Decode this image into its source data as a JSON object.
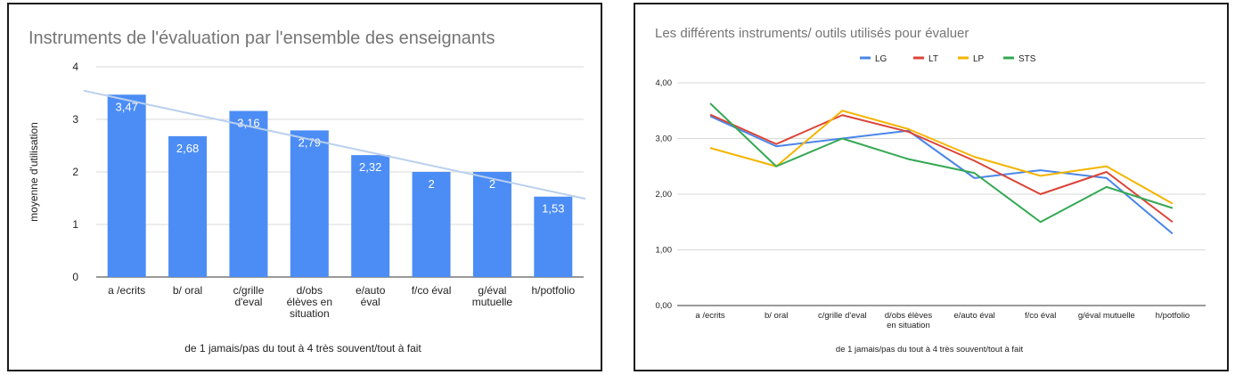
{
  "chart_data": [
    {
      "type": "bar",
      "title": "Instruments de l'évaluation par l'ensemble des enseignants",
      "xlabel": "de 1 jamais/pas du tout  à 4 très souvent/tout à fait",
      "ylabel": "moyenne d'utilisation",
      "ylim": [
        0,
        4
      ],
      "yticks": [
        "0",
        "1",
        "2",
        "3",
        "4"
      ],
      "categories": [
        [
          "a /ecrits"
        ],
        [
          "b/ oral"
        ],
        [
          "c/grille",
          "d'eval"
        ],
        [
          "d/obs",
          "élèves en",
          "situation"
        ],
        [
          "e/auto",
          "éval"
        ],
        [
          "f/co éval"
        ],
        [
          "g/éval",
          "mutuelle"
        ],
        [
          "h/potfolio"
        ]
      ],
      "values": [
        3.47,
        2.68,
        3.16,
        2.79,
        2.32,
        2,
        2,
        1.53
      ],
      "data_labels": [
        "3,47",
        "2,68",
        "3,16",
        "2,79",
        "2,32",
        "2",
        "2",
        "1,53"
      ],
      "trendline": true,
      "grid": true,
      "colors": {
        "bar": "#4c8df5",
        "trend": "#b9cfee",
        "grid": "#d9d9d9"
      }
    },
    {
      "type": "line",
      "title": "Les différents instruments/ outils utilisés pour évaluer",
      "xlabel": "de 1 jamais/pas du tout  à 4 très souvent/tout à fait",
      "ylabel": "",
      "ylim": [
        0,
        4
      ],
      "yticks": [
        "0,00",
        "1,00",
        "2,00",
        "3,00",
        "4,00"
      ],
      "categories": [
        [
          "a /ecrits"
        ],
        [
          "b/ oral"
        ],
        [
          "c/grille d'eval"
        ],
        [
          "d/obs élèves",
          "en situation"
        ],
        [
          "e/auto éval"
        ],
        [
          "f/co éval"
        ],
        [
          "g/éval mutuelle"
        ],
        [
          "h/potfolio"
        ]
      ],
      "series": [
        {
          "name": "LG",
          "color": "#4a86e8",
          "values": [
            3.4,
            2.86,
            3.0,
            3.14,
            2.29,
            2.43,
            2.29,
            1.29
          ]
        },
        {
          "name": "LT",
          "color": "#db4437",
          "values": [
            3.43,
            2.9,
            3.42,
            3.12,
            2.6,
            2.0,
            2.4,
            1.5
          ]
        },
        {
          "name": "LP",
          "color": "#f4b400",
          "values": [
            2.83,
            2.5,
            3.5,
            3.17,
            2.67,
            2.33,
            2.5,
            1.83
          ]
        },
        {
          "name": "STS",
          "color": "#34a853",
          "values": [
            3.63,
            2.5,
            3.0,
            2.63,
            2.38,
            1.5,
            2.13,
            1.75
          ]
        }
      ],
      "legend": "top",
      "grid": true
    }
  ]
}
